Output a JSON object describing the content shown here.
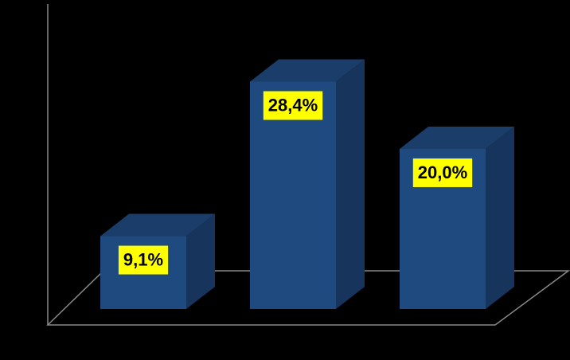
{
  "chart_data": {
    "type": "bar3d",
    "categories": [
      null,
      null,
      null
    ],
    "values": [
      9.1,
      28.4,
      20.0
    ],
    "value_labels": [
      "9,1%",
      "28,4%",
      "20,0%"
    ],
    "color": "#1f4a80",
    "label_background": "#ffff00",
    "ylim": [
      0,
      38
    ]
  }
}
